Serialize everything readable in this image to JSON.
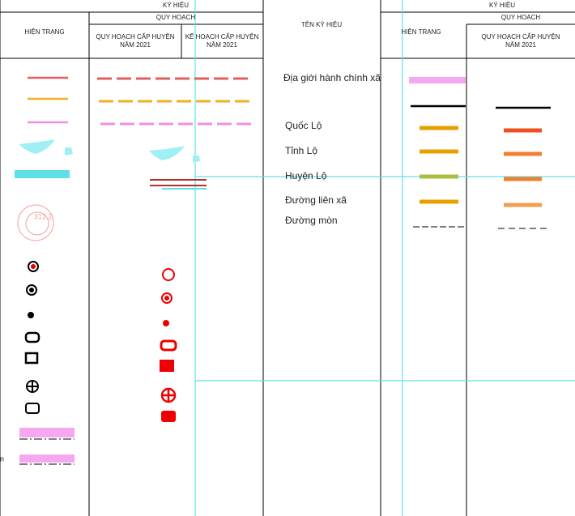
{
  "left_header": {
    "symbol": "KÝ HIỆU",
    "planning": "QUY HOẠCH",
    "current": "HIỆN TRẠNG",
    "district_plan": [
      "QUY HOẠCH CẤP HUYỆN",
      "NĂM 2021"
    ],
    "district_schedule": [
      "KẾ HOẠCH CẤP HUYỆN",
      "NĂM 2021"
    ]
  },
  "name_header": "TÊN KÝ HIỆU",
  "right_header": {
    "symbol": "KÝ HIỆU",
    "planning": "QUY HOẠCH",
    "current": "HIỆN TRẠNG",
    "district_plan": [
      "QUY HOẠCH CẤP HUYỆN",
      "NĂM 2021"
    ]
  },
  "rows": [
    "Địa giới hành chính xã",
    "Quốc Lộ",
    "Tỉnh Lộ",
    "Huyện Lộ",
    "Đường liên xã",
    "Đường mòn"
  ],
  "contour_label": "312.2",
  "edge_fragment": "n"
}
